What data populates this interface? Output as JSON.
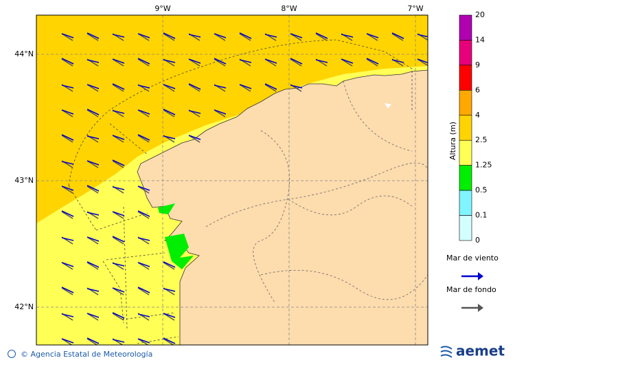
{
  "map": {
    "lon_labels": [
      "9°W",
      "8°W",
      "7°W"
    ],
    "lat_labels": [
      "44°N",
      "43°N",
      "42°N"
    ]
  },
  "colorbar": {
    "title": "Altura (m)",
    "levels": [
      "20",
      "14",
      "9",
      "6",
      "4",
      "2.5",
      "1.25",
      "0.5",
      "0.1",
      "0"
    ],
    "colors": [
      "#b000b0",
      "#e8007a",
      "#ff0000",
      "#ffa800",
      "#ffd400",
      "#ffff55",
      "#00ee00",
      "#80f4ff",
      "#d4ffff"
    ]
  },
  "legend": [
    {
      "label": "Mar de viento",
      "color": "#0000d0"
    },
    {
      "label": "Mar de fondo",
      "color": "#555555"
    }
  ],
  "footer": {
    "credit": "© Agencia Estatal de Meteorología",
    "logo": "aemet"
  }
}
